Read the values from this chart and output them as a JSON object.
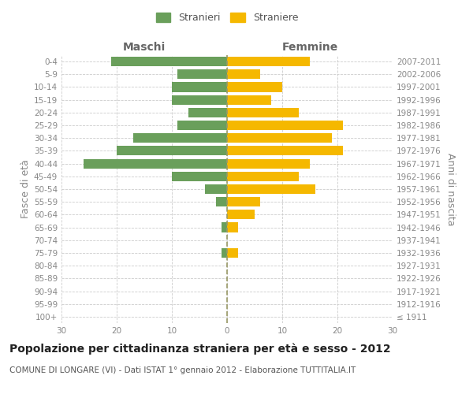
{
  "age_groups": [
    "100+",
    "95-99",
    "90-94",
    "85-89",
    "80-84",
    "75-79",
    "70-74",
    "65-69",
    "60-64",
    "55-59",
    "50-54",
    "45-49",
    "40-44",
    "35-39",
    "30-34",
    "25-29",
    "20-24",
    "15-19",
    "10-14",
    "5-9",
    "0-4"
  ],
  "birth_years": [
    "≤ 1911",
    "1912-1916",
    "1917-1921",
    "1922-1926",
    "1927-1931",
    "1932-1936",
    "1937-1941",
    "1942-1946",
    "1947-1951",
    "1952-1956",
    "1957-1961",
    "1962-1966",
    "1967-1971",
    "1972-1976",
    "1977-1981",
    "1982-1986",
    "1987-1991",
    "1992-1996",
    "1997-2001",
    "2002-2006",
    "2007-2011"
  ],
  "maschi": [
    0,
    0,
    0,
    0,
    0,
    1,
    0,
    1,
    0,
    2,
    4,
    10,
    26,
    20,
    17,
    9,
    7,
    10,
    10,
    9,
    21
  ],
  "femmine": [
    0,
    0,
    0,
    0,
    0,
    2,
    0,
    2,
    5,
    6,
    16,
    13,
    15,
    21,
    19,
    21,
    13,
    8,
    10,
    6,
    15
  ],
  "male_color": "#6a9f5b",
  "female_color": "#f5b800",
  "title": "Popolazione per cittadinanza straniera per età e sesso - 2012",
  "subtitle": "COMUNE DI LONGARE (VI) - Dati ISTAT 1° gennaio 2012 - Elaborazione TUTTITALIA.IT",
  "ylabel_left": "Fasce di età",
  "ylabel_right": "Anni di nascita",
  "xlabel_left": "Maschi",
  "xlabel_right": "Femmine",
  "legend_male": "Stranieri",
  "legend_female": "Straniere",
  "xlim": 30,
  "background_color": "#ffffff",
  "grid_color": "#cccccc",
  "bar_height": 0.75,
  "dashed_line_color": "#999966",
  "title_fontsize": 10,
  "subtitle_fontsize": 7.5,
  "tick_fontsize": 7.5,
  "label_fontsize": 9,
  "legend_fontsize": 9
}
